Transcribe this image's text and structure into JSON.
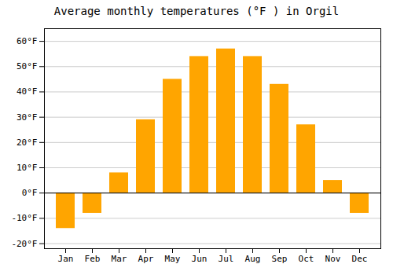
{
  "chart_data": {
    "type": "bar",
    "title": "Average monthly temperatures (°F ) in Orgil",
    "categories": [
      "Jan",
      "Feb",
      "Mar",
      "Apr",
      "May",
      "Jun",
      "Jul",
      "Aug",
      "Sep",
      "Oct",
      "Nov",
      "Dec"
    ],
    "values": [
      -14,
      -8,
      8,
      29,
      45,
      54,
      57,
      54,
      43,
      27,
      5,
      -8
    ],
    "color": "#FFA500",
    "ylim": [
      -22,
      65
    ],
    "yticks": [
      {
        "value": -20,
        "label": "-20°F"
      },
      {
        "value": -10,
        "label": "-10°F"
      },
      {
        "value": 0,
        "label": "0°F"
      },
      {
        "value": 10,
        "label": "10°F"
      },
      {
        "value": 20,
        "label": "20°F"
      },
      {
        "value": 30,
        "label": "30°F"
      },
      {
        "value": 40,
        "label": "40°F"
      },
      {
        "value": 50,
        "label": "50°F"
      },
      {
        "value": 60,
        "label": "60°F"
      }
    ],
    "grid": true
  }
}
